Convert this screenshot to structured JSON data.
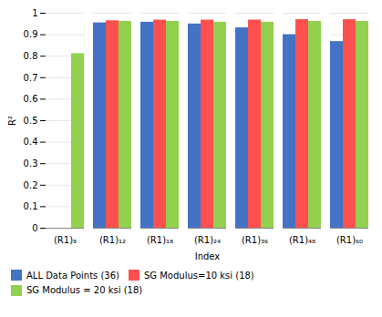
{
  "chart_data": {
    "type": "bar",
    "categories": [
      "(R1)₈",
      "(R1)₁₂",
      "(R1)₁₈",
      "(R1)₂₄",
      "(R1)₃₆",
      "(R1)₄₈",
      "(R1)₆₀"
    ],
    "series": [
      {
        "name": "ALL Data Points (36)",
        "color": "#4472C4",
        "values": [
          null,
          0.955,
          0.958,
          0.95,
          0.932,
          0.9,
          0.868
        ]
      },
      {
        "name": "SG Modulus=10 ksi (18)",
        "color": "#FF5050",
        "values": [
          null,
          0.965,
          0.968,
          0.968,
          0.968,
          0.97,
          0.97
        ]
      },
      {
        "name": "SG Modulus = 20 ksi (18)",
        "color": "#92D050",
        "values": [
          0.812,
          0.962,
          0.962,
          0.958,
          0.958,
          0.962,
          0.962
        ]
      }
    ],
    "xlabel": "Index",
    "ylabel": "R²",
    "ylim": [
      0,
      1.0
    ],
    "yticks": [
      0,
      0.1,
      0.2,
      0.3,
      0.4,
      0.5,
      0.6,
      0.7,
      0.8,
      0.9,
      1
    ],
    "grid": true,
    "legend": "bottom"
  }
}
